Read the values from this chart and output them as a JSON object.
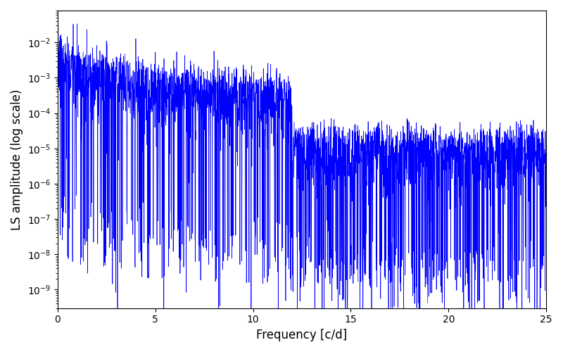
{
  "title": "",
  "xlabel": "Frequency [c/d]",
  "ylabel": "LS amplitude (log scale)",
  "line_color": "#0000FF",
  "line_width": 0.5,
  "xlim": [
    0,
    25
  ],
  "ylim_log": [
    3e-10,
    0.08
  ],
  "yscale": "log",
  "freq_min": 0.0,
  "freq_max": 25.0,
  "n_points": 3000,
  "seed": 7,
  "background_color": "#ffffff",
  "figsize": [
    8.0,
    5.0
  ],
  "dpi": 100
}
